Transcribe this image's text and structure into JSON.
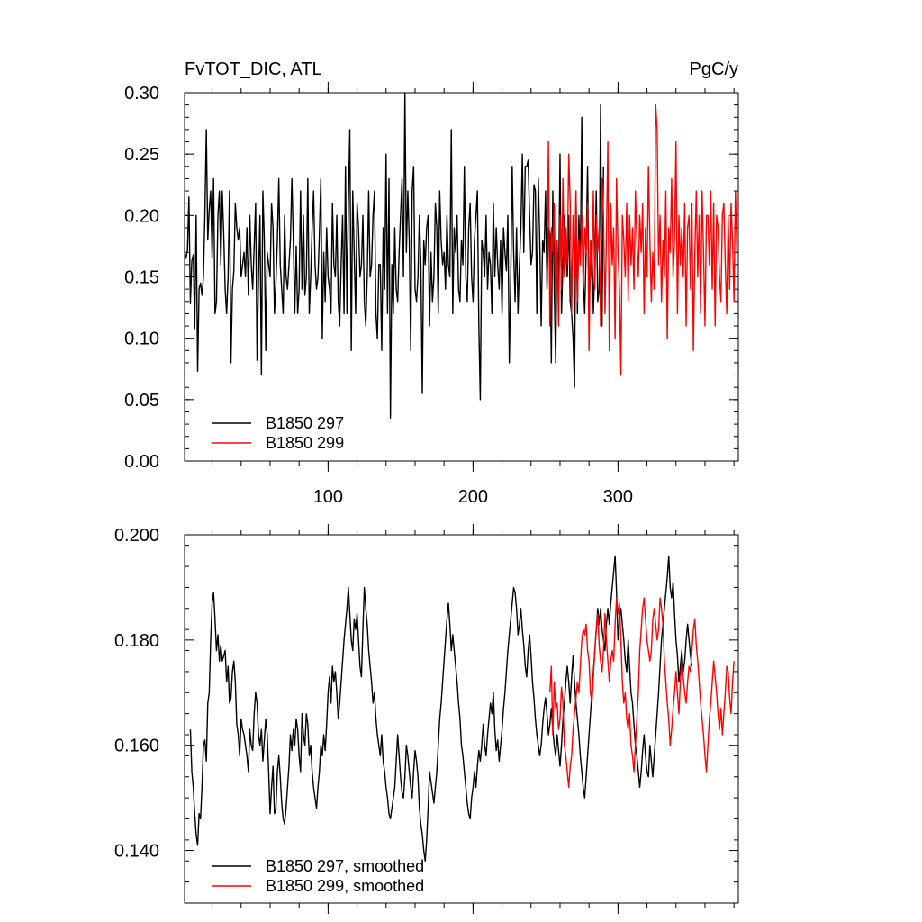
{
  "chart_data": [
    {
      "type": "line",
      "title": "FvTOT_DIC, ATL",
      "units": "PgC/y",
      "xlim": [
        1,
        383
      ],
      "ylim": [
        0,
        0.3
      ],
      "x_ticks": [
        100,
        200,
        300
      ],
      "x_tick_labels": [
        "100",
        "200",
        "300"
      ],
      "y_ticks": [
        0,
        0.05,
        0.1,
        0.15,
        0.2,
        0.25,
        0.3
      ],
      "y_tick_labels": [
        "0.00",
        "0.05",
        "0.10",
        "0.15",
        "0.20",
        "0.25",
        "0.30"
      ],
      "legend_placement": "bottom-left",
      "series": [
        {
          "name": "B1850 297",
          "color": "#000000",
          "x_start": 1,
          "values": [
            0.17,
            0.165,
            0.172,
            0.215,
            0.128,
            0.163,
            0.168,
            0.108,
            0.2,
            0.073,
            0.14,
            0.145,
            0.135,
            0.15,
            0.2,
            0.27,
            0.18,
            0.205,
            0.22,
            0.165,
            0.23,
            0.12,
            0.13,
            0.2,
            0.22,
            0.16,
            0.22,
            0.185,
            0.14,
            0.12,
            0.15,
            0.22,
            0.08,
            0.14,
            0.155,
            0.21,
            0.19,
            0.18,
            0.19,
            0.15,
            0.16,
            0.17,
            0.15,
            0.19,
            0.135,
            0.2,
            0.16,
            0.14,
            0.175,
            0.21,
            0.082,
            0.15,
            0.2,
            0.07,
            0.22,
            0.18,
            0.09,
            0.17,
            0.16,
            0.15,
            0.21,
            0.19,
            0.12,
            0.145,
            0.18,
            0.23,
            0.16,
            0.14,
            0.12,
            0.2,
            0.15,
            0.14,
            0.16,
            0.18,
            0.23,
            0.18,
            0.12,
            0.175,
            0.12,
            0.14,
            0.22,
            0.14,
            0.2,
            0.135,
            0.15,
            0.23,
            0.12,
            0.15,
            0.19,
            0.22,
            0.16,
            0.14,
            0.15,
            0.185,
            0.23,
            0.1,
            0.17,
            0.13,
            0.19,
            0.15,
            0.14,
            0.12,
            0.21,
            0.16,
            0.15,
            0.2,
            0.13,
            0.11,
            0.16,
            0.2,
            0.12,
            0.24,
            0.12,
            0.21,
            0.27,
            0.09,
            0.22,
            0.17,
            0.12,
            0.21,
            0.19,
            0.15,
            0.16,
            0.2,
            0.13,
            0.11,
            0.15,
            0.22,
            0.15,
            0.16,
            0.2,
            0.22,
            0.12,
            0.1,
            0.16,
            0.16,
            0.09,
            0.19,
            0.14,
            0.25,
            0.12,
            0.23,
            0.035,
            0.16,
            0.12,
            0.19,
            0.14,
            0.13,
            0.17,
            0.2,
            0.23,
            0.15,
            0.3,
            0.17,
            0.22,
            0.18,
            0.09,
            0.22,
            0.24,
            0.14,
            0.13,
            0.15,
            0.2,
            0.16,
            0.055,
            0.18,
            0.16,
            0.19,
            0.2,
            0.11,
            0.17,
            0.13,
            0.15,
            0.21,
            0.19,
            0.12,
            0.22,
            0.18,
            0.16,
            0.17,
            0.14,
            0.2,
            0.16,
            0.15,
            0.27,
            0.12,
            0.19,
            0.17,
            0.2,
            0.14,
            0.13,
            0.18,
            0.16,
            0.24,
            0.15,
            0.13,
            0.19,
            0.21,
            0.15,
            0.13,
            0.18,
            0.2,
            0.22,
            0.11,
            0.05,
            0.18,
            0.17,
            0.15,
            0.2,
            0.14,
            0.17,
            0.16,
            0.12,
            0.21,
            0.15,
            0.19,
            0.16,
            0.14,
            0.18,
            0.12,
            0.19,
            0.17,
            0.155,
            0.2,
            0.08,
            0.15,
            0.24,
            0.17,
            0.13,
            0.19,
            0.12,
            0.16,
            0.19,
            0.25,
            0.17,
            0.24,
            0.24,
            0.245,
            0.2,
            0.16,
            0.17,
            0.225,
            0.22,
            0.12,
            0.23,
            0.18,
            0.11,
            0.18,
            0.17,
            0.22,
            0.14,
            0.19,
            0.185,
            0.08,
            0.22,
            0.14,
            0.08,
            0.18,
            0.14,
            0.25,
            0.12,
            0.16,
            0.2,
            0.17,
            0.15,
            0.2,
            0.13,
            0.12,
            0.1,
            0.06,
            0.22,
            0.12,
            0.2,
            0.16,
            0.28,
            0.15,
            0.12,
            0.17,
            0.24,
            0.13,
            0.15,
            0.18,
            0.12,
            0.16,
            0.22,
            0.13,
            0.14,
            0.29,
            0.11,
            0.24
          ]
        },
        {
          "name": "B1850 299",
          "color": "#ff0000",
          "x_start": 251,
          "values": [
            0.15,
            0.26,
            0.11,
            0.19,
            0.17,
            0.21,
            0.12,
            0.18,
            0.11,
            0.2,
            0.14,
            0.23,
            0.15,
            0.19,
            0.16,
            0.25,
            0.21,
            0.12,
            0.2,
            0.15,
            0.22,
            0.13,
            0.18,
            0.16,
            0.2,
            0.14,
            0.19,
            0.17,
            0.21,
            0.09,
            0.18,
            0.15,
            0.22,
            0.14,
            0.2,
            0.17,
            0.19,
            0.11,
            0.23,
            0.2,
            0.12,
            0.18,
            0.26,
            0.09,
            0.21,
            0.16,
            0.19,
            0.1,
            0.23,
            0.17,
            0.14,
            0.07,
            0.2,
            0.18,
            0.15,
            0.21,
            0.13,
            0.2,
            0.16,
            0.19,
            0.14,
            0.22,
            0.18,
            0.15,
            0.2,
            0.17,
            0.21,
            0.12,
            0.19,
            0.15,
            0.24,
            0.18,
            0.13,
            0.17,
            0.14,
            0.29,
            0.27,
            0.16,
            0.2,
            0.13,
            0.18,
            0.15,
            0.22,
            0.1,
            0.19,
            0.17,
            0.23,
            0.15,
            0.18,
            0.26,
            0.12,
            0.2,
            0.16,
            0.19,
            0.15,
            0.21,
            0.11,
            0.19,
            0.2,
            0.14,
            0.21,
            0.09,
            0.17,
            0.22,
            0.15,
            0.2,
            0.12,
            0.22,
            0.17,
            0.11,
            0.2,
            0.2,
            0.16,
            0.22,
            0.14,
            0.21,
            0.11,
            0.2,
            0.19,
            0.15,
            0.13,
            0.2,
            0.21,
            0.16,
            0.12,
            0.2,
            0.14,
            0.21,
            0.18,
            0.13,
            0.22,
            0.17
          ]
        }
      ]
    },
    {
      "type": "line",
      "xlim": [
        1,
        383
      ],
      "ylim": [
        0.13,
        0.2
      ],
      "x_ticks": [
        100,
        200,
        300
      ],
      "y_ticks": [
        0.14,
        0.16,
        0.18,
        0.2
      ],
      "y_tick_labels": [
        "0.140",
        "0.160",
        "0.180",
        "0.200"
      ],
      "legend_placement": "bottom-left",
      "series": [
        {
          "name": "B1850 297, smoothed",
          "color": "#000000",
          "x_start": 5,
          "values": [
            0.163,
            0.155,
            0.152,
            0.147,
            0.143,
            0.141,
            0.147,
            0.146,
            0.152,
            0.16,
            0.161,
            0.157,
            0.168,
            0.17,
            0.18,
            0.187,
            0.189,
            0.184,
            0.178,
            0.181,
            0.176,
            0.179,
            0.176,
            0.177,
            0.178,
            0.172,
            0.175,
            0.168,
            0.169,
            0.174,
            0.176,
            0.172,
            0.164,
            0.162,
            0.158,
            0.165,
            0.163,
            0.162,
            0.16,
            0.158,
            0.155,
            0.163,
            0.16,
            0.159,
            0.166,
            0.17,
            0.168,
            0.162,
            0.16,
            0.163,
            0.157,
            0.161,
            0.165,
            0.162,
            0.155,
            0.147,
            0.152,
            0.156,
            0.147,
            0.148,
            0.155,
            0.158,
            0.154,
            0.149,
            0.146,
            0.145,
            0.148,
            0.152,
            0.156,
            0.162,
            0.159,
            0.163,
            0.16,
            0.165,
            0.163,
            0.158,
            0.155,
            0.166,
            0.162,
            0.16,
            0.166,
            0.164,
            0.158,
            0.16,
            0.155,
            0.152,
            0.15,
            0.148,
            0.152,
            0.155,
            0.16,
            0.158,
            0.162,
            0.159,
            0.164,
            0.17,
            0.173,
            0.168,
            0.175,
            0.172,
            0.174,
            0.17,
            0.165,
            0.168,
            0.172,
            0.176,
            0.18,
            0.183,
            0.186,
            0.19,
            0.185,
            0.18,
            0.178,
            0.184,
            0.182,
            0.185,
            0.18,
            0.175,
            0.173,
            0.182,
            0.19,
            0.186,
            0.183,
            0.178,
            0.175,
            0.172,
            0.168,
            0.17,
            0.165,
            0.162,
            0.16,
            0.158,
            0.162,
            0.157,
            0.155,
            0.152,
            0.15,
            0.147,
            0.146,
            0.148,
            0.15,
            0.152,
            0.157,
            0.162,
            0.158,
            0.154,
            0.151,
            0.15,
            0.154,
            0.16,
            0.158,
            0.155,
            0.152,
            0.15,
            0.155,
            0.159,
            0.157,
            0.154,
            0.148,
            0.145,
            0.143,
            0.14,
            0.138,
            0.142,
            0.148,
            0.155,
            0.153,
            0.151,
            0.149,
            0.152,
            0.155,
            0.16,
            0.165,
            0.168,
            0.172,
            0.176,
            0.18,
            0.184,
            0.187,
            0.183,
            0.178,
            0.181,
            0.178,
            0.175,
            0.172,
            0.168,
            0.165,
            0.16,
            0.158,
            0.155,
            0.152,
            0.149,
            0.147,
            0.146,
            0.15,
            0.152,
            0.155,
            0.152,
            0.156,
            0.159,
            0.157,
            0.16,
            0.164,
            0.16,
            0.158,
            0.162,
            0.165,
            0.168,
            0.166,
            0.17,
            0.163,
            0.159,
            0.161,
            0.157,
            0.16,
            0.163,
            0.167,
            0.17,
            0.174,
            0.178,
            0.181,
            0.184,
            0.187,
            0.19,
            0.189,
            0.186,
            0.181,
            0.183,
            0.186,
            0.182,
            0.179,
            0.175,
            0.173,
            0.178,
            0.181,
            0.177,
            0.172,
            0.169,
            0.165,
            0.162,
            0.16,
            0.158,
            0.16,
            0.164,
            0.167,
            0.169,
            0.166,
            0.162,
            0.164,
            0.167,
            0.163,
            0.16,
            0.158,
            0.162,
            0.159,
            0.156,
            0.16,
            0.165,
            0.168,
            0.172,
            0.175,
            0.172,
            0.168,
            0.173,
            0.177,
            0.172,
            0.168,
            0.165,
            0.162,
            0.158,
            0.155,
            0.152,
            0.15,
            0.154,
            0.158,
            0.162,
            0.166,
            0.17,
            0.174,
            0.178,
            0.182,
            0.186,
            0.183,
            0.186,
            0.182,
            0.18,
            0.178,
            0.183,
            0.186,
            0.183,
            0.187,
            0.19,
            0.193,
            0.196,
            0.189,
            0.18,
            0.184,
            0.186,
            0.183,
            0.18,
            0.176,
            0.174,
            0.18,
            0.175,
            0.17,
            0.168,
            0.164,
            0.16,
            0.158,
            0.155,
            0.152,
            0.155,
            0.159,
            0.162,
            0.158,
            0.155,
            0.154,
            0.16,
            0.157,
            0.154,
            0.158,
            0.162,
            0.166,
            0.17,
            0.175,
            0.18,
            0.183,
            0.186,
            0.189,
            0.192,
            0.196,
            0.19,
            0.188,
            0.191,
            0.185,
            0.18,
            0.177,
            0.172,
            0.175,
            0.178,
            0.174,
            0.176,
            0.18,
            0.183,
            0.18,
            0.177,
            0.175
          ]
        },
        {
          "name": "B1850 299, smoothed",
          "color": "#ff0000",
          "x_start": 253,
          "values": [
            0.17,
            0.175,
            0.162,
            0.172,
            0.167,
            0.168,
            0.163,
            0.165,
            0.171,
            0.168,
            0.16,
            0.158,
            0.155,
            0.152,
            0.156,
            0.158,
            0.163,
            0.166,
            0.169,
            0.172,
            0.17,
            0.175,
            0.18,
            0.182,
            0.181,
            0.183,
            0.178,
            0.176,
            0.17,
            0.168,
            0.173,
            0.178,
            0.182,
            0.185,
            0.179,
            0.176,
            0.174,
            0.178,
            0.185,
            0.18,
            0.176,
            0.172,
            0.176,
            0.178,
            0.176,
            0.183,
            0.188,
            0.185,
            0.187,
            0.18,
            0.172,
            0.168,
            0.17,
            0.165,
            0.163,
            0.166,
            0.16,
            0.158,
            0.155,
            0.16,
            0.165,
            0.17,
            0.178,
            0.182,
            0.186,
            0.188,
            0.184,
            0.18,
            0.178,
            0.176,
            0.178,
            0.184,
            0.186,
            0.183,
            0.18,
            0.182,
            0.188,
            0.186,
            0.183,
            0.176,
            0.172,
            0.168,
            0.165,
            0.16,
            0.163,
            0.167,
            0.17,
            0.174,
            0.17,
            0.166,
            0.172,
            0.176,
            0.173,
            0.17,
            0.168,
            0.172,
            0.175,
            0.174,
            0.178,
            0.182,
            0.184,
            0.179,
            0.176,
            0.172,
            0.168,
            0.165,
            0.162,
            0.158,
            0.155,
            0.16,
            0.165,
            0.168,
            0.172,
            0.176,
            0.173,
            0.17,
            0.166,
            0.163,
            0.167,
            0.162,
            0.166,
            0.17,
            0.175,
            0.174,
            0.169,
            0.166,
            0.172,
            0.176
          ]
        }
      ]
    }
  ]
}
